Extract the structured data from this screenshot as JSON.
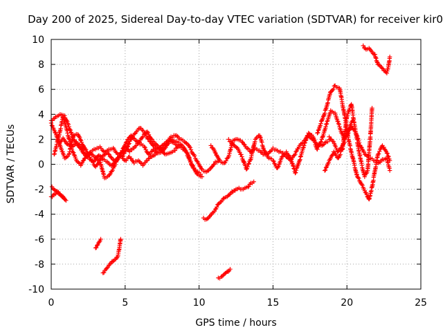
{
  "chart_data": {
    "type": "scatter",
    "title": "Day 200 of 2025, Sidereal Day-to-day VTEC variation (SDTVAR) for receiver kir0",
    "xlabel": "GPS time / hours",
    "ylabel": "SDTVAR / TECUs",
    "xlim": [
      0,
      25
    ],
    "ylim": [
      -10,
      10
    ],
    "xticks": [
      0,
      5,
      10,
      15,
      20,
      25
    ],
    "yticks": [
      -10,
      -8,
      -6,
      -4,
      -2,
      0,
      2,
      4,
      6,
      8,
      10
    ],
    "grid": true,
    "marker": "+",
    "colors": {
      "series": "#ff0000",
      "grid": "#a0a0a0",
      "axis": "#000000"
    },
    "series": [
      {
        "name": "track-a",
        "points": [
          [
            0,
            3.5
          ],
          [
            0.3,
            3.8
          ],
          [
            0.6,
            4.0
          ],
          [
            0.9,
            3.9
          ],
          [
            1.2,
            3.0
          ],
          [
            1.5,
            2.0
          ],
          [
            1.8,
            1.5
          ],
          [
            2.1,
            1.0
          ],
          [
            2.4,
            0.6
          ],
          [
            2.7,
            1.0
          ],
          [
            3.0,
            1.2
          ],
          [
            3.3,
            1.4
          ],
          [
            3.6,
            1.0
          ],
          [
            3.9,
            1.2
          ],
          [
            4.2,
            1.3
          ],
          [
            4.5,
            0.8
          ],
          [
            4.8,
            0.6
          ],
          [
            5.1,
            1.2
          ],
          [
            5.4,
            2.0
          ],
          [
            5.7,
            2.5
          ],
          [
            6.0,
            2.9
          ],
          [
            6.3,
            2.5
          ],
          [
            6.6,
            2.0
          ],
          [
            6.9,
            1.5
          ],
          [
            7.2,
            1.2
          ],
          [
            7.5,
            1.5
          ],
          [
            7.8,
            1.8
          ],
          [
            8.1,
            2.2
          ],
          [
            8.4,
            2.3
          ],
          [
            8.7,
            2.0
          ],
          [
            9.0,
            1.8
          ],
          [
            9.3,
            1.5
          ],
          [
            9.6,
            0.8
          ],
          [
            9.9,
            0.2
          ],
          [
            10.2,
            -0.4
          ],
          [
            10.5,
            -0.6
          ],
          [
            10.8,
            -0.3
          ],
          [
            11.1,
            0.2
          ],
          [
            11.4,
            0.3
          ]
        ]
      },
      {
        "name": "track-b",
        "points": [
          [
            0,
            3.3
          ],
          [
            0.3,
            2.5
          ],
          [
            0.6,
            1.5
          ],
          [
            0.9,
            0.5
          ],
          [
            1.2,
            0.8
          ],
          [
            1.5,
            2.3
          ],
          [
            1.8,
            2.4
          ],
          [
            2.1,
            1.6
          ],
          [
            2.4,
            1.0
          ],
          [
            2.7,
            0.3
          ],
          [
            3.0,
            -0.2
          ],
          [
            3.3,
            0.3
          ],
          [
            3.6,
            -1.1
          ],
          [
            3.9,
            -0.9
          ],
          [
            4.2,
            -0.3
          ],
          [
            4.5,
            0.5
          ],
          [
            4.8,
            1.0
          ],
          [
            5.1,
            1.8
          ],
          [
            5.4,
            2.3
          ],
          [
            5.7,
            1.9
          ],
          [
            6.0,
            1.6
          ],
          [
            6.3,
            1.4
          ],
          [
            6.6,
            0.8
          ],
          [
            6.9,
            1.2
          ],
          [
            7.2,
            0.9
          ],
          [
            7.5,
            1.0
          ],
          [
            7.8,
            1.5
          ],
          [
            8.1,
            2.0
          ],
          [
            8.4,
            1.8
          ],
          [
            8.7,
            1.6
          ],
          [
            9.0,
            1.3
          ],
          [
            9.3,
            0.5
          ],
          [
            9.6,
            -0.3
          ],
          [
            9.9,
            -0.8
          ],
          [
            10.2,
            -1.0
          ]
        ]
      },
      {
        "name": "track-c",
        "points": [
          [
            0.2,
            0.8
          ],
          [
            0.5,
            2.2
          ],
          [
            0.8,
            3.8
          ],
          [
            1.1,
            2.5
          ],
          [
            1.4,
            1.2
          ],
          [
            1.7,
            0.3
          ],
          [
            2.0,
            -0.1
          ],
          [
            2.3,
            0.5
          ],
          [
            2.6,
            0.9
          ],
          [
            2.9,
            0.6
          ],
          [
            3.2,
            0.3
          ],
          [
            3.5,
            0.7
          ],
          [
            3.8,
            1.0
          ],
          [
            4.1,
            0.5
          ],
          [
            4.4,
            0.2
          ],
          [
            4.7,
            0.9
          ],
          [
            5.0,
            1.5
          ],
          [
            5.3,
            1.0
          ],
          [
            5.6,
            1.3
          ],
          [
            5.9,
            1.7
          ],
          [
            6.2,
            2.2
          ],
          [
            6.5,
            2.6
          ],
          [
            6.8,
            2.0
          ],
          [
            7.1,
            1.6
          ],
          [
            7.4,
            1.3
          ],
          [
            7.7,
            0.8
          ],
          [
            8.0,
            0.9
          ],
          [
            8.3,
            1.1
          ],
          [
            8.6,
            1.4
          ],
          [
            8.9,
            1.2
          ],
          [
            9.2,
            0.9
          ],
          [
            9.5,
            0.0
          ],
          [
            9.8,
            -0.6
          ],
          [
            10.1,
            -0.8
          ]
        ]
      },
      {
        "name": "track-d",
        "points": [
          [
            0.5,
            1.6
          ],
          [
            0.8,
            2.1
          ],
          [
            1.1,
            1.6
          ],
          [
            1.4,
            1.4
          ],
          [
            1.7,
            1.8
          ],
          [
            2.0,
            1.4
          ],
          [
            2.3,
            0.7
          ],
          [
            2.6,
            0.4
          ],
          [
            2.9,
            0.2
          ],
          [
            3.2,
            0.7
          ],
          [
            3.5,
            0.4
          ],
          [
            3.8,
            0.2
          ],
          [
            4.1,
            -0.1
          ],
          [
            4.4,
            0.4
          ],
          [
            4.7,
            0.7
          ],
          [
            5.0,
            0.3
          ],
          [
            5.3,
            0.6
          ],
          [
            5.6,
            0.1
          ],
          [
            5.9,
            0.3
          ],
          [
            6.2,
            -0.1
          ],
          [
            6.5,
            0.3
          ],
          [
            6.8,
            0.6
          ],
          [
            7.1,
            0.9
          ],
          [
            7.4,
            1.1
          ],
          [
            7.7,
            1.5
          ],
          [
            8.0,
            1.9
          ],
          [
            8.3,
            1.7
          ],
          [
            8.6,
            1.5
          ]
        ]
      },
      {
        "name": "segment-low-left",
        "points": [
          [
            0.0,
            -2.6
          ],
          [
            0.2,
            -2.4
          ],
          [
            0.4,
            -2.3
          ],
          [
            0.6,
            -2.4
          ],
          [
            0.8,
            -2.6
          ],
          [
            1.0,
            -2.9
          ],
          [
            0.05,
            -1.8
          ]
        ]
      },
      {
        "name": "segment-low-1",
        "points": [
          [
            3.0,
            -6.7
          ],
          [
            3.2,
            -6.3
          ],
          [
            3.35,
            -6.0
          ]
        ]
      },
      {
        "name": "segment-low-2",
        "points": [
          [
            3.5,
            -8.7
          ],
          [
            3.7,
            -8.4
          ],
          [
            3.9,
            -8.1
          ],
          [
            4.1,
            -7.8
          ],
          [
            4.3,
            -7.6
          ],
          [
            4.5,
            -7.4
          ],
          [
            4.6,
            -6.8
          ],
          [
            4.7,
            -6.0
          ]
        ]
      },
      {
        "name": "segment-rise",
        "points": [
          [
            10.3,
            -4.3
          ],
          [
            10.5,
            -4.4
          ],
          [
            10.7,
            -4.2
          ],
          [
            10.9,
            -3.9
          ],
          [
            11.1,
            -3.6
          ],
          [
            11.3,
            -3.2
          ],
          [
            11.5,
            -3.0
          ],
          [
            11.7,
            -2.7
          ],
          [
            11.9,
            -2.6
          ],
          [
            12.1,
            -2.4
          ],
          [
            12.3,
            -2.2
          ],
          [
            12.5,
            -2.0
          ],
          [
            12.7,
            -1.9
          ],
          [
            12.9,
            -2.0
          ],
          [
            13.1,
            -1.9
          ],
          [
            13.3,
            -1.8
          ],
          [
            13.5,
            -1.5
          ],
          [
            13.7,
            -1.4
          ]
        ]
      },
      {
        "name": "segment-bottom",
        "points": [
          [
            11.3,
            -9.1
          ],
          [
            11.5,
            -9.0
          ],
          [
            11.7,
            -8.8
          ],
          [
            11.9,
            -8.6
          ],
          [
            12.1,
            -8.4
          ]
        ]
      },
      {
        "name": "track-mid",
        "points": [
          [
            10.8,
            1.5
          ],
          [
            11.0,
            1.2
          ],
          [
            11.2,
            0.7
          ],
          [
            11.4,
            0.3
          ],
          [
            11.7,
            0.1
          ],
          [
            12.0,
            0.6
          ],
          [
            12.3,
            1.9
          ],
          [
            12.6,
            2.0
          ],
          [
            12.9,
            1.8
          ],
          [
            13.2,
            1.3
          ],
          [
            13.5,
            1.0
          ],
          [
            13.8,
            1.3
          ],
          [
            14.1,
            1.1
          ],
          [
            14.4,
            0.8
          ],
          [
            14.7,
            0.9
          ],
          [
            15.0,
            1.3
          ],
          [
            15.3,
            1.1
          ],
          [
            15.6,
            0.9
          ],
          [
            15.9,
            0.6
          ],
          [
            16.2,
            0.3
          ],
          [
            16.5,
            0.8
          ],
          [
            16.8,
            1.5
          ],
          [
            17.1,
            1.9
          ],
          [
            17.4,
            2.3
          ],
          [
            17.7,
            2.0
          ],
          [
            18.0,
            1.6
          ],
          [
            18.3,
            1.5
          ],
          [
            18.6,
            1.8
          ],
          [
            18.9,
            2.0
          ]
        ]
      },
      {
        "name": "track-mid-2",
        "points": [
          [
            12.0,
            2.0
          ],
          [
            12.3,
            1.6
          ],
          [
            12.6,
            1.3
          ],
          [
            12.9,
            0.6
          ],
          [
            13.2,
            -0.4
          ],
          [
            13.5,
            0.4
          ],
          [
            13.8,
            2.0
          ],
          [
            14.1,
            2.3
          ],
          [
            14.4,
            1.1
          ],
          [
            14.7,
            0.5
          ],
          [
            15.0,
            0.3
          ],
          [
            15.3,
            -0.3
          ],
          [
            15.6,
            0.6
          ],
          [
            15.9,
            1.0
          ],
          [
            16.2,
            0.5
          ],
          [
            16.5,
            -0.7
          ],
          [
            16.8,
            0.3
          ],
          [
            17.1,
            1.5
          ],
          [
            17.4,
            2.5
          ],
          [
            17.7,
            2.2
          ],
          [
            18.0,
            1.2
          ],
          [
            18.3,
            2.0
          ],
          [
            18.6,
            3.2
          ],
          [
            18.9,
            4.3
          ],
          [
            19.2,
            4.1
          ],
          [
            19.5,
            3.0
          ],
          [
            19.8,
            2.0
          ],
          [
            20.1,
            2.8
          ],
          [
            20.4,
            3.5
          ]
        ]
      },
      {
        "name": "track-late-1",
        "points": [
          [
            18.0,
            2.5
          ],
          [
            18.3,
            3.5
          ],
          [
            18.6,
            4.5
          ],
          [
            18.9,
            5.8
          ],
          [
            19.2,
            6.3
          ],
          [
            19.5,
            6.1
          ],
          [
            19.8,
            4.2
          ],
          [
            20.1,
            2.0
          ],
          [
            20.4,
            0.5
          ],
          [
            20.7,
            -1.0
          ],
          [
            21.0,
            -1.6
          ],
          [
            21.3,
            -2.3
          ],
          [
            21.5,
            -2.8
          ],
          [
            21.7,
            -1.8
          ],
          [
            21.9,
            -0.5
          ],
          [
            22.1,
            0.8
          ],
          [
            22.4,
            1.5
          ],
          [
            22.7,
            0.9
          ],
          [
            22.9,
            0.3
          ]
        ]
      },
      {
        "name": "track-late-2",
        "points": [
          [
            18.8,
            2.2
          ],
          [
            19.1,
            1.8
          ],
          [
            19.4,
            1.0
          ],
          [
            19.7,
            1.5
          ],
          [
            20.0,
            2.3
          ],
          [
            20.3,
            3.0
          ],
          [
            20.6,
            2.5
          ],
          [
            20.9,
            1.5
          ],
          [
            21.2,
            0.8
          ],
          [
            21.5,
            0.5
          ],
          [
            21.8,
            0.3
          ],
          [
            22.1,
            0.1
          ],
          [
            22.4,
            0.4
          ],
          [
            22.7,
            0.5
          ],
          [
            22.9,
            -0.5
          ]
        ]
      },
      {
        "name": "track-late-3",
        "points": [
          [
            18.5,
            -0.5
          ],
          [
            18.8,
            0.3
          ],
          [
            19.1,
            1.0
          ],
          [
            19.4,
            0.5
          ],
          [
            19.7,
            1.2
          ],
          [
            20.0,
            3.8
          ],
          [
            20.3,
            4.8
          ],
          [
            20.6,
            2.5
          ],
          [
            20.9,
            0.5
          ],
          [
            21.2,
            -1.0
          ],
          [
            21.4,
            -0.5
          ],
          [
            21.6,
            2.5
          ],
          [
            21.7,
            4.5
          ]
        ]
      },
      {
        "name": "cluster-top",
        "points": [
          [
            21.1,
            9.5
          ],
          [
            21.3,
            9.2
          ],
          [
            21.5,
            9.3
          ],
          [
            21.7,
            9.0
          ],
          [
            21.9,
            8.8
          ],
          [
            22.0,
            8.3
          ],
          [
            22.1,
            8.0
          ],
          [
            22.3,
            7.8
          ],
          [
            22.5,
            7.5
          ],
          [
            22.7,
            7.3
          ],
          [
            22.8,
            7.8
          ],
          [
            22.9,
            8.6
          ]
        ]
      }
    ]
  },
  "page": {
    "title": "Day 200 of 2025, Sidereal Day-to-day VTEC variation (SDTVAR) for receiver kir0",
    "xlabel": "GPS time / hours",
    "ylabel": "SDTVAR / TECUs"
  }
}
